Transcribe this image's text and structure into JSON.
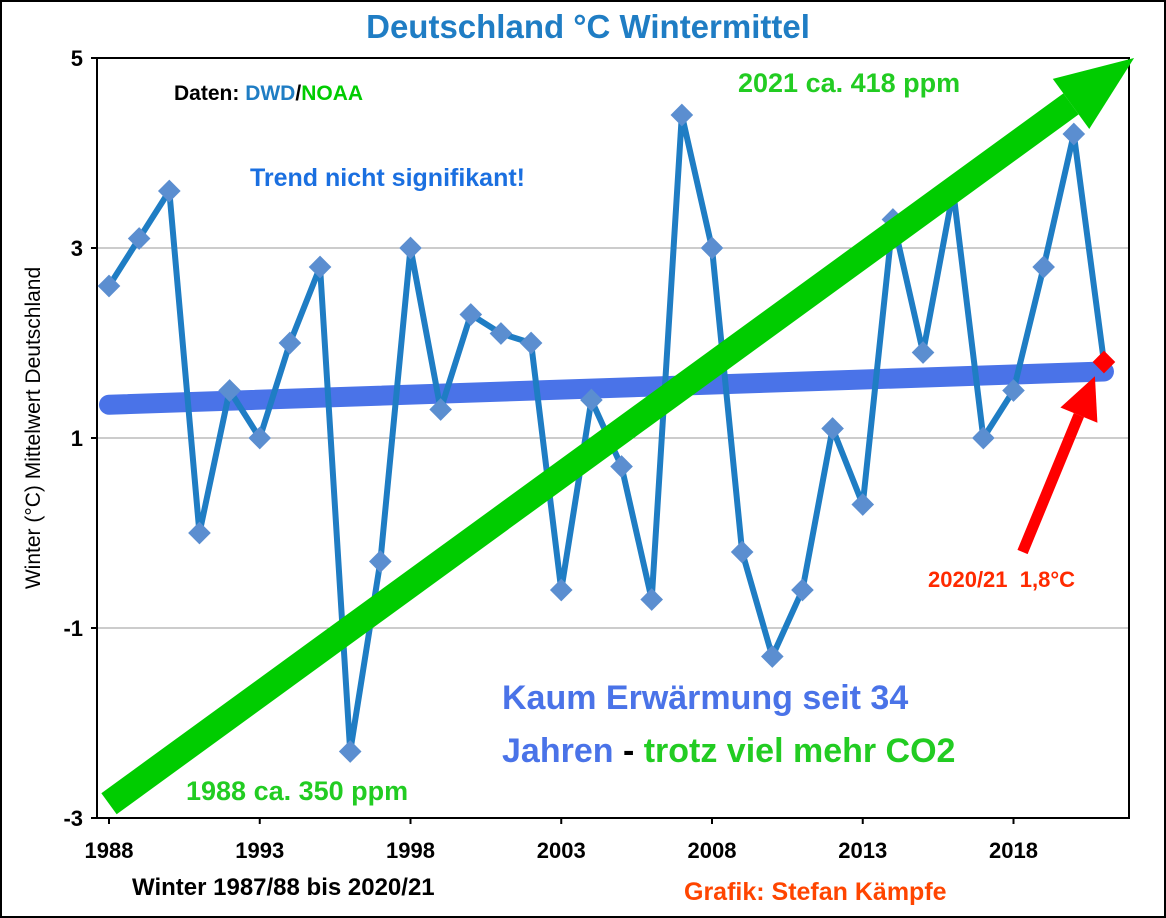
{
  "colors": {
    "series": "#1f7dc4",
    "marker": "#5b8ed0",
    "trend": "#4a73e8",
    "co2": "#00cc00",
    "highlight": "#ff0000",
    "title": "#1f7dc4",
    "credit": "#ff4500"
  },
  "chart_data": {
    "type": "line",
    "title": "Deutschland °C Wintermittel",
    "xlabel": "Winter 1987/88 bis 2020/21",
    "ylabel": "Winter (°C) Mittelwert Deutschland",
    "ylim": [
      -3,
      5
    ],
    "yticks": [
      -3,
      -1,
      1,
      3,
      5
    ],
    "xticks": [
      1988,
      1993,
      1998,
      2003,
      2008,
      2013,
      2018
    ],
    "xlim": [
      1988,
      2022
    ],
    "grid": "horizontal",
    "series": [
      {
        "x": [
          1988,
          1989,
          1990,
          1991,
          1992,
          1993,
          1994,
          1995,
          1996,
          1997,
          1998,
          1999,
          2000,
          2001,
          2002,
          2003,
          2004,
          2005,
          2006,
          2007,
          2008,
          2009,
          2010,
          2011,
          2012,
          2013,
          2014,
          2015,
          2016,
          2017,
          2018,
          2019,
          2020,
          2021
        ],
        "values": [
          2.6,
          3.1,
          3.6,
          0.0,
          1.5,
          1.0,
          2.0,
          2.8,
          -2.3,
          -0.3,
          3.0,
          1.3,
          2.3,
          2.1,
          2.0,
          -0.6,
          1.4,
          0.7,
          -0.7,
          4.4,
          3.0,
          -0.2,
          -1.3,
          -0.6,
          1.1,
          0.3,
          3.3,
          1.9,
          3.6,
          1.0,
          1.5,
          2.8,
          4.2,
          1.8
        ]
      }
    ],
    "trend": {
      "start": [
        1988,
        1.35
      ],
      "end": [
        2021,
        1.7
      ]
    },
    "co2_arrow": {
      "start": [
        1988,
        -2.85
      ],
      "end": [
        2022,
        5.0
      ]
    },
    "highlight_arrow": {
      "from": [
        2018.3,
        -0.2
      ],
      "to": [
        2020.7,
        1.65
      ]
    },
    "annotations": {
      "daten_prefix": "Daten: ",
      "daten_dwd": "DWD",
      "daten_sep": "/",
      "daten_noaa": "NOAA",
      "trend_note": "Trend nicht signifikant!",
      "co2_2021": "2021 ca. 418 ppm",
      "co2_1988": "1988 ca. 350 ppm",
      "winter_value": "2020/21  1,8°C",
      "headline_1": "Kaum Erwärmung seit 34",
      "headline_2a": "Jahren",
      "headline_2b": " - ",
      "headline_2c": "trotz viel mehr CO2",
      "credit": "Grafik: Stefan Kämpfe"
    }
  }
}
